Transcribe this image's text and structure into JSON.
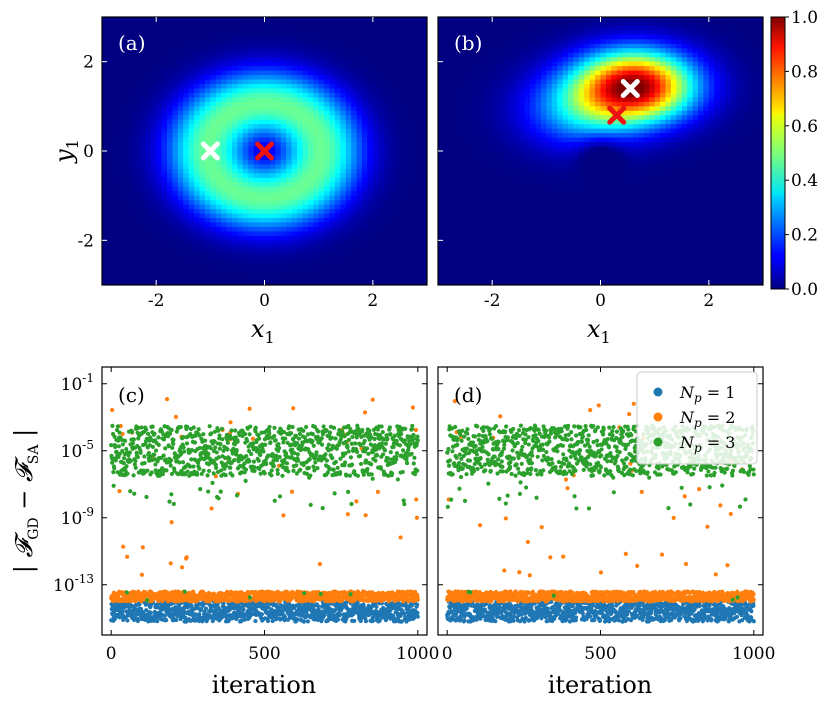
{
  "chart_data": [
    {
      "panel": "(a)",
      "type": "heatmap",
      "xlabel": "x1",
      "ylabel": "y1",
      "xlim": [
        -3,
        3
      ],
      "ylim": [
        -3,
        3
      ],
      "xticks": [
        -2,
        0,
        2
      ],
      "yticks": [
        -2,
        0,
        2
      ],
      "xtick_labels": [
        "-2",
        "0",
        "2"
      ],
      "ytick_labels": [
        "-2",
        "0",
        "2"
      ],
      "markers": [
        {
          "name": "white-cross",
          "color": "#ffffff",
          "x": -1.0,
          "y": 0.0
        },
        {
          "name": "red-cross",
          "color": "#ee1111",
          "x": 0.0,
          "y": 0.0
        }
      ]
    },
    {
      "panel": "(b)",
      "type": "heatmap",
      "xlabel": "x1",
      "xlim": [
        -3,
        3
      ],
      "ylim": [
        -3,
        3
      ],
      "xticks": [
        -2,
        0,
        2
      ],
      "xtick_labels": [
        "-2",
        "0",
        "2"
      ],
      "markers": [
        {
          "name": "white-cross",
          "color": "#ffffff",
          "x": 0.55,
          "y": 1.4
        },
        {
          "name": "red-cross",
          "color": "#ee1111",
          "x": 0.3,
          "y": 0.8
        }
      ]
    },
    {
      "panel": "(c)",
      "type": "scatter",
      "xlabel": "iteration",
      "ylabel": "| F_GD − F_SA |",
      "xlim": [
        -30,
        1030
      ],
      "ylim_log10": [
        -16,
        0
      ],
      "xticks": [
        0,
        500,
        1000
      ],
      "xtick_labels": [
        "0",
        "500",
        "1000"
      ],
      "yticks_log10": [
        -1,
        -5,
        -9,
        -13
      ],
      "ytick_labels": [
        "10-1",
        "10-5",
        "10-9",
        "10-13"
      ],
      "series": [
        {
          "name": "N_p = 1",
          "color": "#1f77b4",
          "log10_band": [
            -15.2,
            -14.0
          ],
          "iterations": [
            0,
            1000
          ]
        },
        {
          "name": "N_p = 2",
          "color": "#ff7f0e",
          "log10_band": [
            -14.0,
            -13.4
          ],
          "iterations": [
            0,
            1000
          ]
        },
        {
          "name": "N_p = 3",
          "color": "#2ca02c",
          "log10_band": [
            -6.5,
            -3.5
          ],
          "iterations": [
            0,
            1000
          ]
        }
      ]
    },
    {
      "panel": "(d)",
      "type": "scatter",
      "xlabel": "iteration",
      "xlim": [
        -30,
        1030
      ],
      "ylim_log10": [
        -16,
        0
      ],
      "xticks": [
        0,
        500,
        1000
      ],
      "xtick_labels": [
        "0",
        "500",
        "1000"
      ],
      "series": [
        {
          "name": "N_p = 1",
          "color": "#1f77b4",
          "log10_band": [
            -15.2,
            -14.0
          ],
          "iterations": [
            0,
            1000
          ]
        },
        {
          "name": "N_p = 2",
          "color": "#ff7f0e",
          "log10_band": [
            -14.0,
            -13.4
          ],
          "iterations": [
            0,
            1000
          ]
        },
        {
          "name": "N_p = 3",
          "color": "#2ca02c",
          "log10_band": [
            -6.5,
            -3.5
          ],
          "iterations": [
            0,
            1000
          ]
        }
      ]
    }
  ],
  "colorbar": {
    "range": [
      0.0,
      1.0
    ],
    "tick_values": [
      0.0,
      0.2,
      0.4,
      0.6,
      0.8,
      1.0
    ],
    "tick_labels": [
      "0.0",
      "0.2",
      "0.4",
      "0.6",
      "0.8",
      "1.0"
    ]
  },
  "legend": {
    "placement": "top-right of panel (d)",
    "entries": [
      {
        "label": "Np = 1",
        "color": "#1f77b4"
      },
      {
        "label": "Np = 2",
        "color": "#ff7f0e"
      },
      {
        "label": "Np = 3",
        "color": "#2ca02c"
      }
    ]
  }
}
